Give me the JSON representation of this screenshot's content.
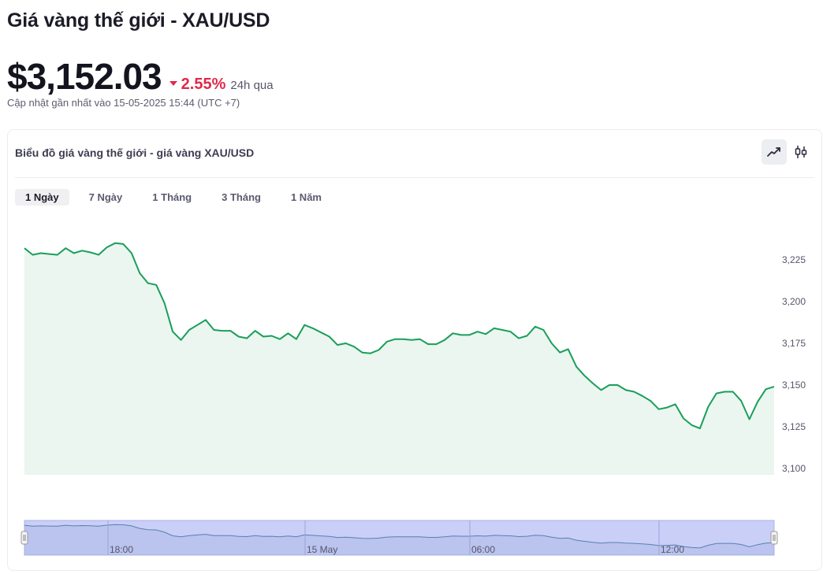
{
  "page": {
    "title": "Giá vàng thế giới - XAU/USD",
    "price": "$3,152.03",
    "change": "2.55%",
    "change_period": "24h qua",
    "updated": "Cập nhật gần nhất vào 15-05-2025 15:44 (UTC +7)"
  },
  "card": {
    "title": "Biểu đồ giá vàng thế giới - giá vàng XAU/USD",
    "tabs": [
      {
        "label": "1 Ngày",
        "active": true
      },
      {
        "label": "7 Ngày",
        "active": false
      },
      {
        "label": "1 Tháng",
        "active": false
      },
      {
        "label": "3 Tháng",
        "active": false
      },
      {
        "label": "1 Năm",
        "active": false
      }
    ],
    "view_toggle": [
      {
        "icon": "line-chart-icon",
        "active": true
      },
      {
        "icon": "candlestick-icon",
        "active": false
      }
    ]
  },
  "colors": {
    "line": "#1a9e5a",
    "area": "#eaf6ef",
    "negative": "#e0294a",
    "navigator_fill": "#c9cff7",
    "navigator_line": "#5a7fb0"
  },
  "chart_data": {
    "type": "area",
    "ylim": [
      3100,
      3235
    ],
    "yticks": [
      3100,
      3125,
      3150,
      3175,
      3200,
      3225
    ],
    "ytick_labels": [
      "3,100",
      "3,125",
      "3,150",
      "3,175",
      "3,200",
      "3,225"
    ],
    "navigator_labels": [
      "18:00",
      "15 May",
      "06:00",
      "12:00"
    ],
    "values": [
      3232,
      3228,
      3229,
      3228.5,
      3228,
      3232,
      3229,
      3230.5,
      3229.5,
      3228,
      3232.5,
      3235,
      3234.5,
      3229,
      3217,
      3211,
      3210,
      3199,
      3182,
      3177,
      3183,
      3186,
      3189,
      3183,
      3182.5,
      3182.5,
      3179,
      3178,
      3182.5,
      3179,
      3179.5,
      3177.5,
      3181,
      3177.5,
      3186,
      3184,
      3181.5,
      3179,
      3174,
      3175,
      3173,
      3169.5,
      3169,
      3171,
      3176,
      3177.5,
      3177.5,
      3177,
      3177.5,
      3174.5,
      3174.5,
      3177,
      3181,
      3180,
      3180,
      3182,
      3180.5,
      3184,
      3183,
      3182,
      3178,
      3179.5,
      3185,
      3183,
      3175,
      3169.5,
      3171.5,
      3161,
      3155.5,
      3151,
      3147,
      3150,
      3150,
      3147,
      3146,
      3143.5,
      3140.5,
      3135.5,
      3136.5,
      3138.5,
      3130,
      3126,
      3124,
      3137,
      3145,
      3146,
      3146,
      3140.5,
      3129.5,
      3140,
      3147.5,
      3149
    ]
  }
}
